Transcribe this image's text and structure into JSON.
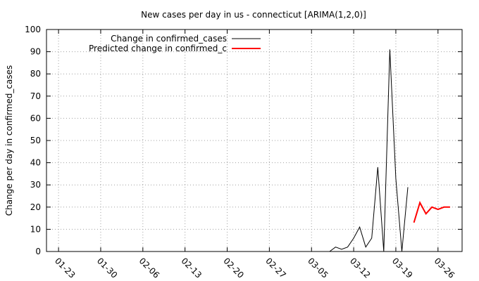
{
  "chart_data": {
    "type": "line",
    "title": "New cases per day in us - connecticut [ARIMA(1,2,0)]",
    "xlabel": "",
    "ylabel": "Change per day in confirmed_cases",
    "x_tick_labels": [
      "01-23",
      "01-30",
      "02-06",
      "02-13",
      "02-20",
      "02-27",
      "03-05",
      "03-12",
      "03-19",
      "03-26"
    ],
    "xlim": [
      "01-21",
      "03-30"
    ],
    "ylim": [
      0,
      100
    ],
    "y_ticks": [
      0,
      10,
      20,
      30,
      40,
      50,
      60,
      70,
      80,
      90,
      100
    ],
    "grid": true,
    "legend_position": "top-left",
    "series": [
      {
        "name": "Change in confirmed_cases",
        "color": "#000000",
        "x": [
          "03-08",
          "03-09",
          "03-10",
          "03-11",
          "03-12",
          "03-13",
          "03-14",
          "03-15",
          "03-16",
          "03-17",
          "03-18",
          "03-19",
          "03-20",
          "03-21"
        ],
        "values": [
          0,
          2,
          1,
          2,
          6,
          11,
          2,
          6,
          38,
          0,
          91,
          33,
          0,
          29
        ]
      },
      {
        "name": "Predicted change in confirmed_c",
        "color": "#ff0000",
        "x": [
          "03-22",
          "03-23",
          "03-24",
          "03-25",
          "03-26",
          "03-27",
          "03-28"
        ],
        "values": [
          13,
          22,
          17,
          20,
          19,
          20,
          20
        ]
      }
    ]
  }
}
